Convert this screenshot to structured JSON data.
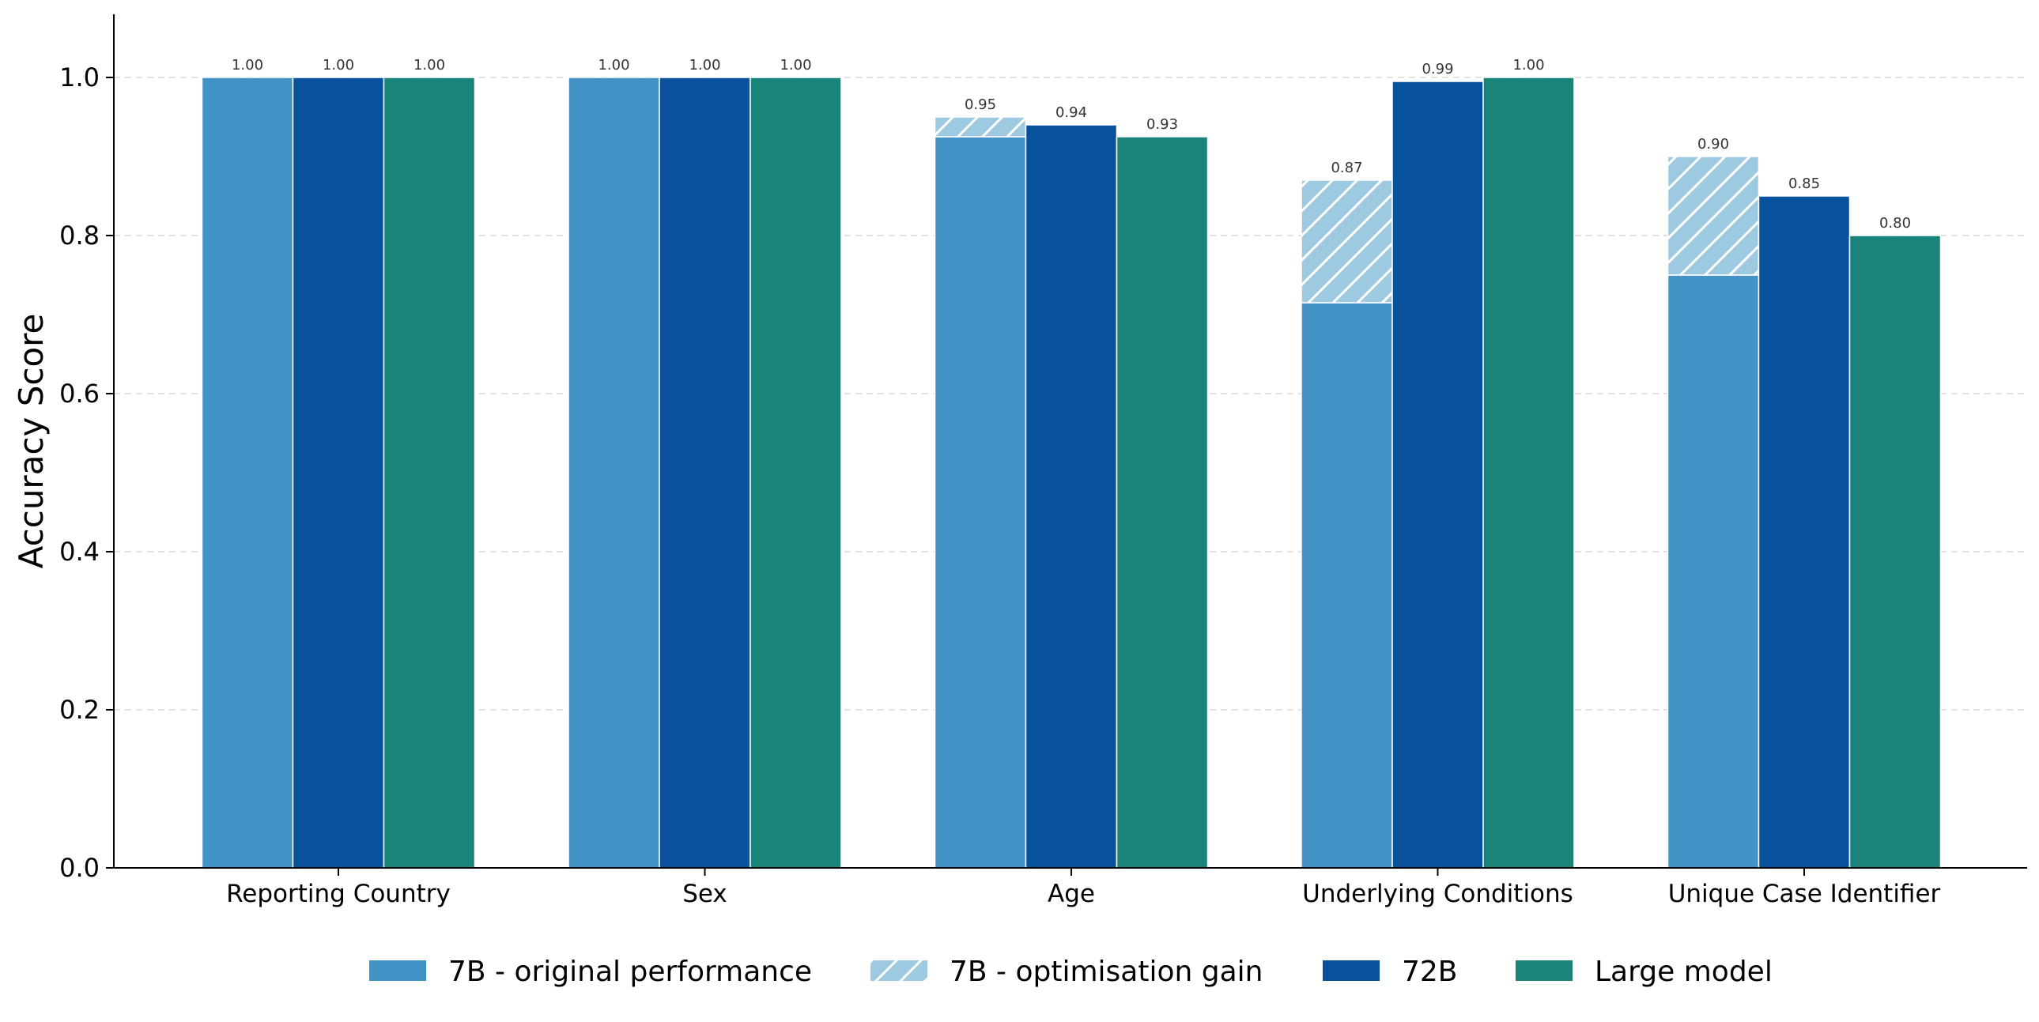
{
  "chart_data": {
    "type": "bar",
    "title": "",
    "xlabel": "",
    "ylabel": "Accuracy Score",
    "ylim": [
      0,
      1.08
    ],
    "yticks": [
      "0.0",
      "0.2",
      "0.4",
      "0.6",
      "0.8",
      "1.0"
    ],
    "grid": "horizontal-dashed",
    "legend_position": "bottom-center",
    "categories": [
      "Reporting Country",
      "Sex",
      "Age",
      "Underlying Conditions",
      "Unique Case Identifier"
    ],
    "series": [
      {
        "name": "7B - original performance",
        "color": "#4292c6",
        "values": [
          1.0,
          1.0,
          0.925,
          0.715,
          0.75
        ]
      },
      {
        "name": "7B - optimisation gain",
        "color": "#9ecae1",
        "stacked_on": "7B - original performance",
        "values": [
          0.0,
          0.0,
          0.025,
          0.155,
          0.15
        ]
      },
      {
        "name": "72B",
        "color": "#08519c",
        "values": [
          1.0,
          1.0,
          0.94,
          0.995,
          0.85
        ]
      },
      {
        "name": "Large model",
        "color": "#1a847a",
        "values": [
          1.0,
          1.0,
          0.925,
          1.0,
          0.8
        ]
      }
    ],
    "data_labels": {
      "7B": [
        "1.00",
        "1.00",
        "0.95",
        "0.87",
        "0.90"
      ],
      "72B": [
        "1.00",
        "1.00",
        "0.94",
        "0.99",
        "0.85"
      ],
      "Large model": [
        "1.00",
        "1.00",
        "0.93",
        "1.00",
        "0.80"
      ]
    }
  }
}
